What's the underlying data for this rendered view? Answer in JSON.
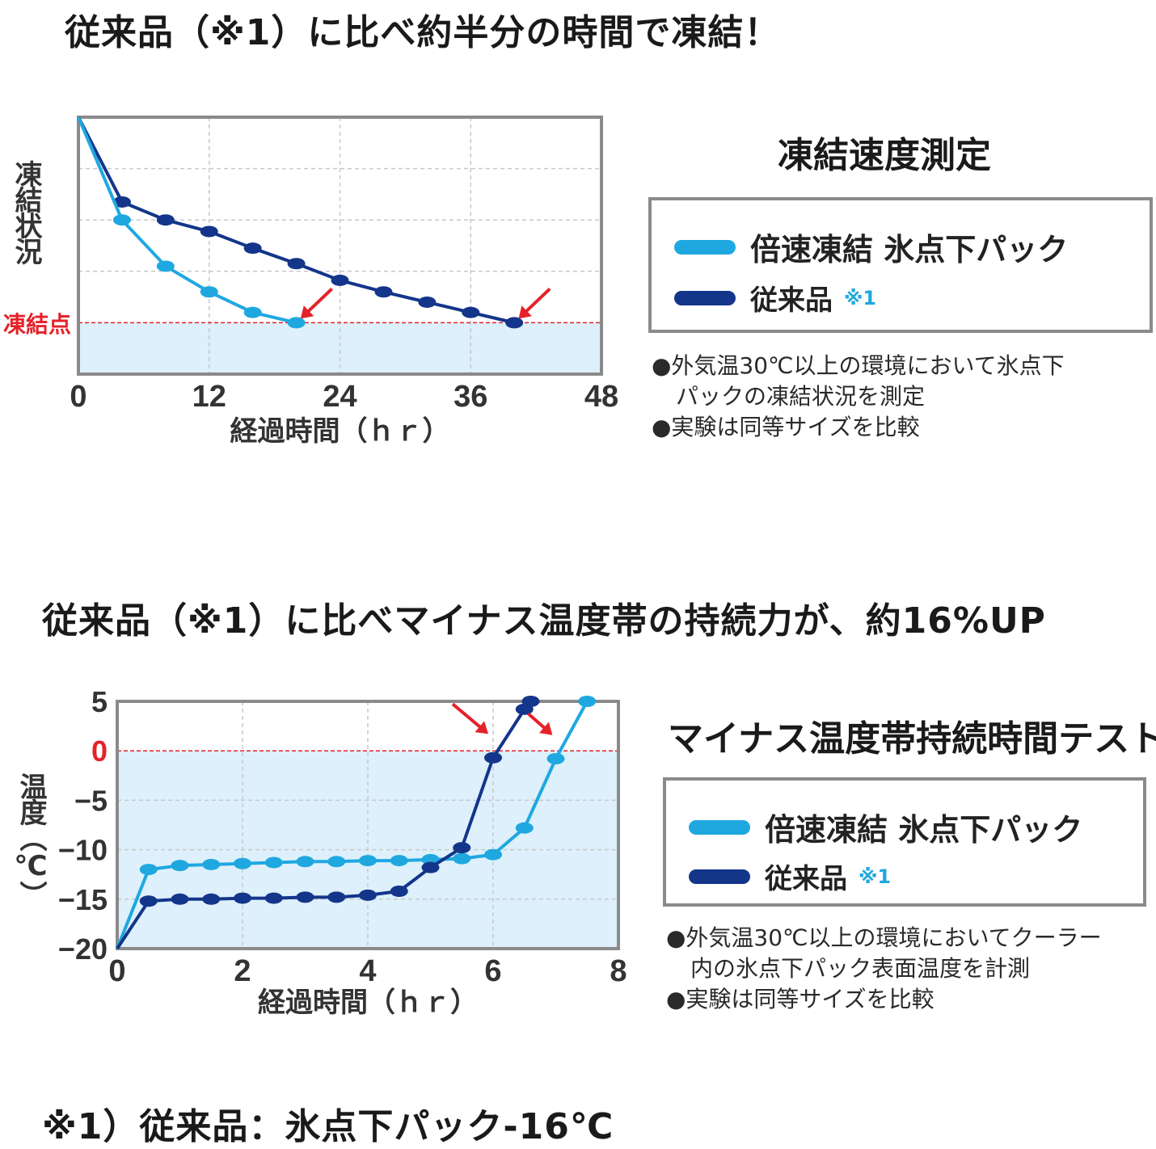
{
  "headline1": "従来品（※1）に比べ約半分の時間で凍結！",
  "headline2": "従来品（※1）に比べマイナス温度帯の持続力が、約16%UP",
  "footnote": "※1）従来品：氷点下パック-16℃",
  "panel1": {
    "title": "凍結速度測定",
    "legend": [
      {
        "label": "倍速凍結 氷点下パック",
        "note": "",
        "color": "#1fa8e0"
      },
      {
        "label": "従来品",
        "note": "※1",
        "color": "#13358a"
      }
    ],
    "notes": [
      "●外気温30℃以上の環境において氷点下",
      "パックの凍結状況を測定",
      "●実験は同等サイズを比較"
    ]
  },
  "panel2": {
    "title": "マイナス温度帯持続時間テスト",
    "legend": [
      {
        "label": "倍速凍結 氷点下パック",
        "note": "",
        "color": "#1fa8e0"
      },
      {
        "label": "従来品",
        "note": "※1",
        "color": "#13358a"
      }
    ],
    "notes": [
      "●外気温30℃以上の環境においてクーラー",
      "内の氷点下パック表面温度を計測",
      "●実験は同等サイズを比較"
    ]
  },
  "chart_data": [
    {
      "type": "line",
      "title": "凍結速度測定",
      "xlabel": "経過時間（ｈｒ）",
      "ylabel": "凍結状況",
      "threshold_label": "凍結点",
      "x_ticks": [
        "0",
        "12",
        "24",
        "36",
        "48"
      ],
      "xlim": [
        0,
        48
      ],
      "ylim": [
        0,
        100
      ],
      "threshold": 20,
      "grid": true,
      "series": [
        {
          "name": "倍速凍結 氷点下パック",
          "color": "#1fa8e0",
          "x": [
            0,
            4,
            8,
            12,
            16,
            20
          ],
          "y": [
            100,
            60,
            42,
            32,
            24,
            20
          ]
        },
        {
          "name": "従来品",
          "color": "#13358a",
          "x": [
            0,
            4,
            8,
            12,
            16,
            20,
            24,
            28,
            32,
            36,
            40
          ],
          "y": [
            100,
            67,
            60,
            55.5,
            49,
            43,
            36.5,
            32,
            28,
            24,
            20
          ]
        }
      ]
    },
    {
      "type": "line",
      "title": "マイナス温度帯持続時間テスト",
      "xlabel": "経過時間（ｈｒ）",
      "ylabel": "温度（℃）",
      "x_ticks": [
        "0",
        "2",
        "4",
        "6",
        "8"
      ],
      "y_ticks": [
        "5",
        "0",
        "-5",
        "-10",
        "-15",
        "-20"
      ],
      "xlim": [
        0,
        8
      ],
      "ylim": [
        -20,
        5
      ],
      "threshold": 0,
      "grid": true,
      "series": [
        {
          "name": "倍速凍結 氷点下パック",
          "color": "#1fa8e0",
          "x": [
            0,
            0.5,
            1,
            1.5,
            2,
            2.5,
            3,
            3.5,
            4,
            4.5,
            5,
            5.5,
            6,
            6.5,
            7,
            7.5
          ],
          "y": [
            -20,
            -12,
            -11.6,
            -11.5,
            -11.4,
            -11.3,
            -11.2,
            -11.2,
            -11.1,
            -11.1,
            -11,
            -10.9,
            -10.5,
            -7.8,
            -0.8,
            5
          ]
        },
        {
          "name": "従来品",
          "color": "#13358a",
          "x": [
            0,
            0.5,
            1,
            1.5,
            2,
            2.5,
            3,
            3.5,
            4,
            4.5,
            5,
            5.5,
            6,
            6.5,
            6.6
          ],
          "y": [
            -20,
            -15.2,
            -15,
            -15,
            -14.9,
            -14.9,
            -14.8,
            -14.8,
            -14.6,
            -14.2,
            -11.8,
            -9.8,
            -0.7,
            4.2,
            5
          ]
        }
      ]
    }
  ]
}
